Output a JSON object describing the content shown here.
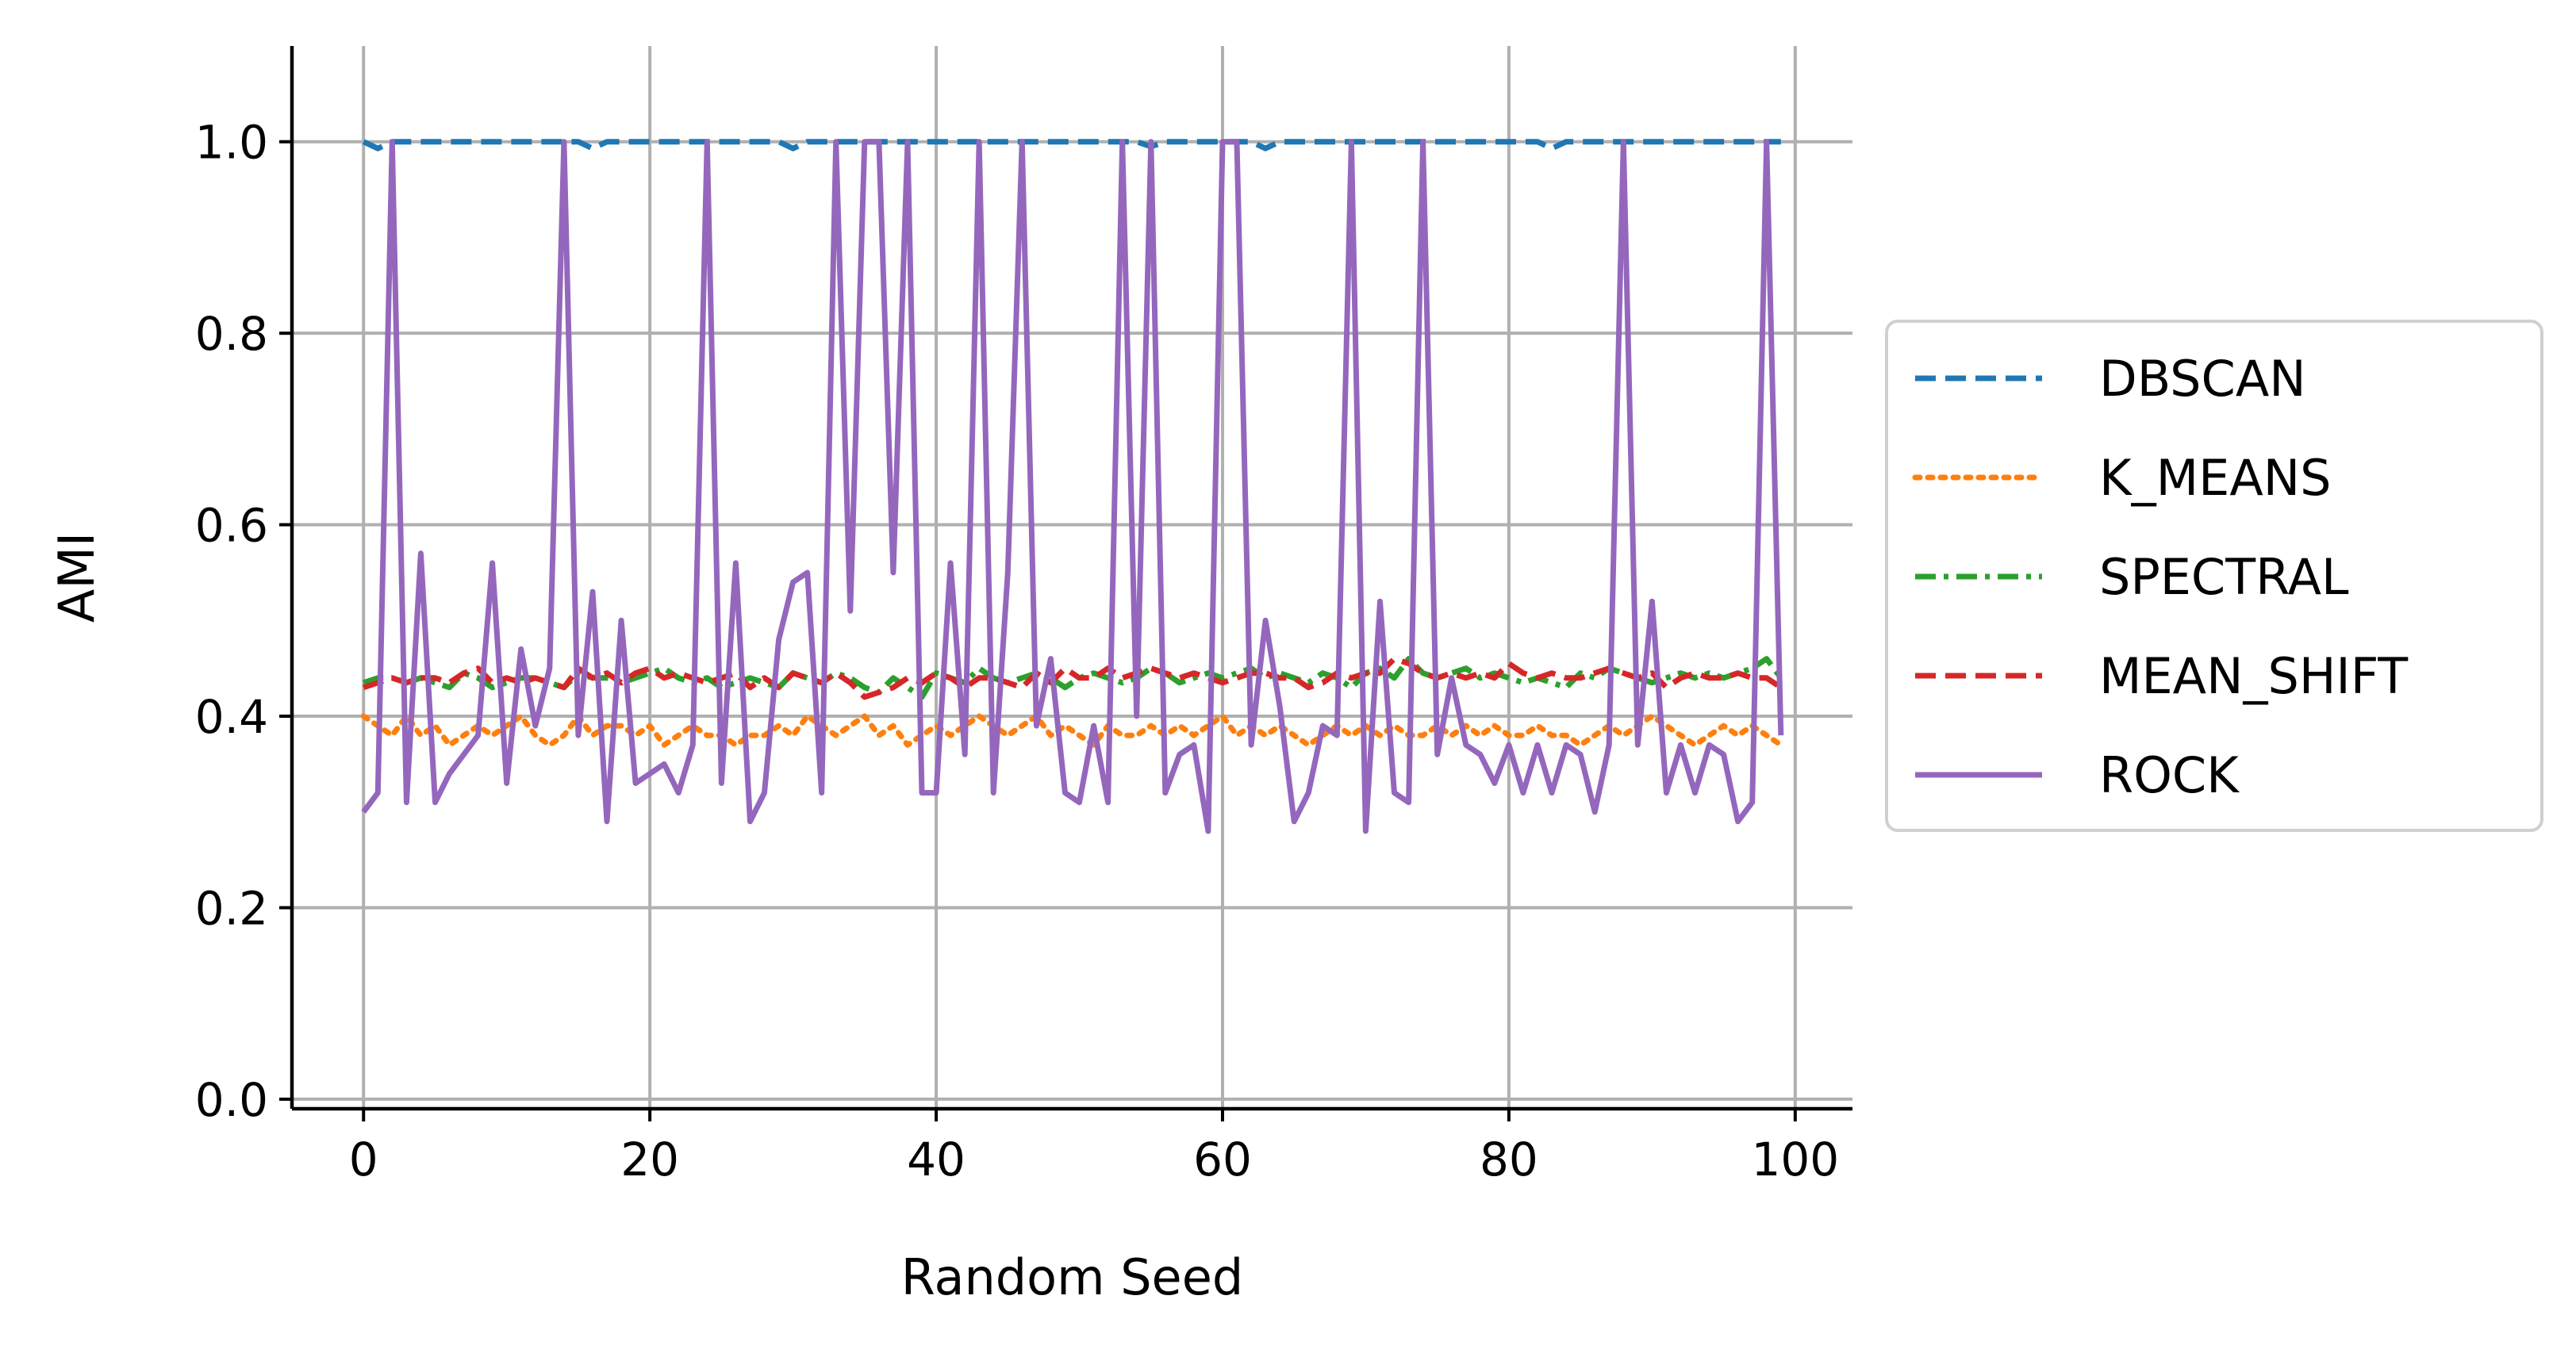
{
  "chart_data": {
    "type": "line",
    "xlabel": "Random Seed",
    "ylabel": "AMI",
    "xlim": [
      -5,
      104
    ],
    "ylim": [
      -0.01,
      1.1
    ],
    "xticks": [
      0,
      20,
      40,
      60,
      80,
      100
    ],
    "xtick_labels": [
      "0",
      "20",
      "40",
      "60",
      "80",
      "100"
    ],
    "yticks": [
      0.0,
      0.2,
      0.4,
      0.6,
      0.8,
      1.0
    ],
    "ytick_labels": [
      "0.0",
      "0.2",
      "0.4",
      "0.6",
      "0.8",
      "1.0"
    ],
    "grid": true,
    "legend_position": "right, outside plot",
    "x": [
      0,
      1,
      2,
      3,
      4,
      5,
      6,
      7,
      8,
      9,
      10,
      11,
      12,
      13,
      14,
      15,
      16,
      17,
      18,
      19,
      20,
      21,
      22,
      23,
      24,
      25,
      26,
      27,
      28,
      29,
      30,
      31,
      32,
      33,
      34,
      35,
      36,
      37,
      38,
      39,
      40,
      41,
      42,
      43,
      44,
      45,
      46,
      47,
      48,
      49,
      50,
      51,
      52,
      53,
      54,
      55,
      56,
      57,
      58,
      59,
      60,
      61,
      62,
      63,
      64,
      65,
      66,
      67,
      68,
      69,
      70,
      71,
      72,
      73,
      74,
      75,
      76,
      77,
      78,
      79,
      80,
      81,
      82,
      83,
      84,
      85,
      86,
      87,
      88,
      89,
      90,
      91,
      92,
      93,
      94,
      95,
      96,
      97,
      98,
      99
    ],
    "series": [
      {
        "name": "DBSCAN",
        "color": "#1f77b4",
        "style": "dashed",
        "values": [
          1.0,
          0.993,
          1.0,
          1.0,
          1.0,
          1.0,
          1.0,
          1.0,
          1.0,
          1.0,
          1.0,
          1.0,
          1.0,
          1.0,
          1.0,
          1.0,
          0.993,
          1.0,
          1.0,
          1.0,
          1.0,
          1.0,
          1.0,
          1.0,
          1.0,
          1.0,
          1.0,
          1.0,
          1.0,
          1.0,
          0.993,
          1.0,
          1.0,
          1.0,
          1.0,
          1.0,
          1.0,
          1.0,
          1.0,
          1.0,
          1.0,
          1.0,
          1.0,
          1.0,
          1.0,
          1.0,
          1.0,
          1.0,
          1.0,
          1.0,
          1.0,
          1.0,
          1.0,
          1.0,
          1.0,
          0.995,
          1.0,
          1.0,
          1.0,
          1.0,
          1.0,
          1.0,
          1.0,
          0.993,
          1.0,
          1.0,
          1.0,
          1.0,
          1.0,
          1.0,
          1.0,
          1.0,
          1.0,
          1.0,
          1.0,
          1.0,
          1.0,
          1.0,
          1.0,
          1.0,
          1.0,
          1.0,
          1.0,
          0.993,
          1.0,
          1.0,
          1.0,
          1.0,
          1.0,
          1.0,
          1.0,
          1.0,
          1.0,
          1.0,
          1.0,
          1.0,
          1.0,
          1.0,
          1.0,
          1.0
        ]
      },
      {
        "name": "K_MEANS",
        "color": "#ff7f0e",
        "style": "dotted",
        "values": [
          0.4,
          0.39,
          0.38,
          0.4,
          0.38,
          0.39,
          0.37,
          0.38,
          0.39,
          0.38,
          0.39,
          0.4,
          0.38,
          0.37,
          0.38,
          0.4,
          0.38,
          0.39,
          0.39,
          0.38,
          0.39,
          0.37,
          0.38,
          0.39,
          0.38,
          0.38,
          0.37,
          0.38,
          0.38,
          0.39,
          0.38,
          0.4,
          0.39,
          0.38,
          0.39,
          0.4,
          0.38,
          0.39,
          0.37,
          0.38,
          0.39,
          0.38,
          0.39,
          0.4,
          0.39,
          0.38,
          0.39,
          0.4,
          0.38,
          0.39,
          0.38,
          0.37,
          0.39,
          0.38,
          0.38,
          0.39,
          0.38,
          0.39,
          0.38,
          0.39,
          0.4,
          0.38,
          0.39,
          0.38,
          0.39,
          0.38,
          0.37,
          0.38,
          0.39,
          0.38,
          0.39,
          0.38,
          0.39,
          0.38,
          0.38,
          0.39,
          0.38,
          0.39,
          0.38,
          0.39,
          0.38,
          0.38,
          0.39,
          0.38,
          0.38,
          0.37,
          0.38,
          0.39,
          0.38,
          0.39,
          0.4,
          0.39,
          0.38,
          0.37,
          0.38,
          0.39,
          0.38,
          0.39,
          0.38,
          0.37
        ]
      },
      {
        "name": "SPECTRAL",
        "color": "#2ca02c",
        "style": "dashdot",
        "values": [
          0.435,
          0.44,
          0.44,
          0.435,
          0.44,
          0.435,
          0.43,
          0.445,
          0.44,
          0.43,
          0.435,
          0.44,
          0.44,
          0.435,
          0.43,
          0.445,
          0.44,
          0.44,
          0.435,
          0.44,
          0.445,
          0.45,
          0.44,
          0.435,
          0.44,
          0.43,
          0.435,
          0.44,
          0.435,
          0.43,
          0.445,
          0.44,
          0.435,
          0.445,
          0.44,
          0.43,
          0.425,
          0.44,
          0.43,
          0.42,
          0.445,
          0.44,
          0.435,
          0.45,
          0.44,
          0.435,
          0.44,
          0.445,
          0.44,
          0.43,
          0.44,
          0.445,
          0.44,
          0.435,
          0.44,
          0.45,
          0.445,
          0.435,
          0.44,
          0.445,
          0.44,
          0.445,
          0.45,
          0.44,
          0.445,
          0.44,
          0.435,
          0.445,
          0.44,
          0.43,
          0.445,
          0.45,
          0.44,
          0.46,
          0.445,
          0.44,
          0.445,
          0.45,
          0.44,
          0.445,
          0.44,
          0.435,
          0.44,
          0.435,
          0.43,
          0.445,
          0.44,
          0.45,
          0.445,
          0.44,
          0.435,
          0.44,
          0.445,
          0.44,
          0.445,
          0.44,
          0.445,
          0.45,
          0.46,
          0.44
        ]
      },
      {
        "name": "MEAN_SHIFT",
        "color": "#d62728",
        "style": "dashed",
        "values": [
          0.43,
          0.435,
          0.44,
          0.435,
          0.44,
          0.44,
          0.435,
          0.445,
          0.45,
          0.435,
          0.44,
          0.435,
          0.44,
          0.435,
          0.43,
          0.45,
          0.44,
          0.445,
          0.435,
          0.445,
          0.45,
          0.44,
          0.445,
          0.44,
          0.435,
          0.44,
          0.445,
          0.43,
          0.44,
          0.43,
          0.445,
          0.44,
          0.435,
          0.445,
          0.435,
          0.42,
          0.425,
          0.43,
          0.44,
          0.435,
          0.445,
          0.44,
          0.43,
          0.44,
          0.44,
          0.435,
          0.43,
          0.445,
          0.435,
          0.45,
          0.44,
          0.44,
          0.45,
          0.44,
          0.445,
          0.45,
          0.445,
          0.44,
          0.445,
          0.44,
          0.435,
          0.44,
          0.445,
          0.445,
          0.44,
          0.44,
          0.43,
          0.435,
          0.445,
          0.44,
          0.445,
          0.445,
          0.46,
          0.455,
          0.445,
          0.44,
          0.445,
          0.44,
          0.445,
          0.44,
          0.455,
          0.445,
          0.44,
          0.445,
          0.44,
          0.44,
          0.445,
          0.45,
          0.445,
          0.44,
          0.445,
          0.43,
          0.44,
          0.445,
          0.44,
          0.44,
          0.445,
          0.44,
          0.44,
          0.43
        ]
      },
      {
        "name": "ROCK",
        "color": "#9467bd",
        "style": "solid",
        "values": [
          0.3,
          0.32,
          1.0,
          0.31,
          0.57,
          0.31,
          0.34,
          0.36,
          0.38,
          0.56,
          0.33,
          0.47,
          0.39,
          0.45,
          1.0,
          0.38,
          0.53,
          0.29,
          0.5,
          0.33,
          0.34,
          0.35,
          0.32,
          0.37,
          1.0,
          0.33,
          0.56,
          0.29,
          0.32,
          0.48,
          0.54,
          0.55,
          0.32,
          1.0,
          0.51,
          1.0,
          1.0,
          0.55,
          1.0,
          0.32,
          0.32,
          0.56,
          0.36,
          1.0,
          0.32,
          0.55,
          1.0,
          0.39,
          0.46,
          0.32,
          0.31,
          0.39,
          0.31,
          1.0,
          0.4,
          1.0,
          0.32,
          0.36,
          0.37,
          0.28,
          1.0,
          1.0,
          0.37,
          0.5,
          0.41,
          0.29,
          0.32,
          0.39,
          0.38,
          1.0,
          0.28,
          0.52,
          0.32,
          0.31,
          1.0,
          0.36,
          0.44,
          0.37,
          0.36,
          0.33,
          0.37,
          0.32,
          0.37,
          0.32,
          0.37,
          0.36,
          0.3,
          0.37,
          1.0,
          0.37,
          0.52,
          0.32,
          0.37,
          0.32,
          0.37,
          0.36,
          0.29,
          0.31,
          1.0,
          0.38
        ]
      }
    ]
  }
}
